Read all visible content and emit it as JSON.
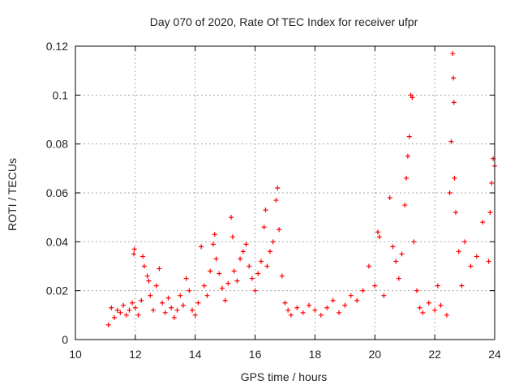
{
  "chart_data": {
    "type": "scatter",
    "title": "Day 070 of 2020, Rate Of TEC Index for receiver ufpr",
    "xlabel": "GPS time / hours",
    "ylabel": "ROTI / TECUs",
    "xlim": [
      10,
      24
    ],
    "ylim": [
      0,
      0.12
    ],
    "x_ticks": [
      "10",
      "12",
      "14",
      "16",
      "18",
      "20",
      "22",
      "24"
    ],
    "y_ticks": [
      "0",
      "0.02",
      "0.04",
      "0.06",
      "0.08",
      "0.1",
      "0.12"
    ],
    "grid": true,
    "marker": "+",
    "color": "#ff0000",
    "series": [
      {
        "name": "ROTI",
        "points": [
          [
            11.1,
            0.006
          ],
          [
            11.2,
            0.013
          ],
          [
            11.3,
            0.009
          ],
          [
            11.4,
            0.012
          ],
          [
            11.5,
            0.011
          ],
          [
            11.6,
            0.014
          ],
          [
            11.7,
            0.01
          ],
          [
            11.8,
            0.012
          ],
          [
            11.9,
            0.015
          ],
          [
            11.95,
            0.035
          ],
          [
            11.97,
            0.037
          ],
          [
            12.0,
            0.013
          ],
          [
            12.1,
            0.01
          ],
          [
            12.2,
            0.016
          ],
          [
            12.25,
            0.034
          ],
          [
            12.3,
            0.03
          ],
          [
            12.4,
            0.026
          ],
          [
            12.45,
            0.024
          ],
          [
            12.5,
            0.018
          ],
          [
            12.6,
            0.012
          ],
          [
            12.7,
            0.022
          ],
          [
            12.8,
            0.029
          ],
          [
            12.9,
            0.015
          ],
          [
            13.0,
            0.011
          ],
          [
            13.1,
            0.017
          ],
          [
            13.2,
            0.013
          ],
          [
            13.3,
            0.009
          ],
          [
            13.4,
            0.012
          ],
          [
            13.5,
            0.018
          ],
          [
            13.6,
            0.014
          ],
          [
            13.7,
            0.025
          ],
          [
            13.8,
            0.02
          ],
          [
            13.9,
            0.012
          ],
          [
            14.0,
            0.01
          ],
          [
            14.1,
            0.015
          ],
          [
            14.2,
            0.038
          ],
          [
            14.3,
            0.022
          ],
          [
            14.4,
            0.018
          ],
          [
            14.5,
            0.028
          ],
          [
            14.6,
            0.039
          ],
          [
            14.65,
            0.043
          ],
          [
            14.7,
            0.033
          ],
          [
            14.8,
            0.027
          ],
          [
            14.9,
            0.021
          ],
          [
            15.0,
            0.016
          ],
          [
            15.1,
            0.023
          ],
          [
            15.2,
            0.05
          ],
          [
            15.25,
            0.042
          ],
          [
            15.3,
            0.028
          ],
          [
            15.4,
            0.024
          ],
          [
            15.5,
            0.033
          ],
          [
            15.6,
            0.036
          ],
          [
            15.7,
            0.039
          ],
          [
            15.8,
            0.03
          ],
          [
            15.9,
            0.025
          ],
          [
            16.0,
            0.02
          ],
          [
            16.1,
            0.027
          ],
          [
            16.2,
            0.032
          ],
          [
            16.3,
            0.046
          ],
          [
            16.35,
            0.053
          ],
          [
            16.4,
            0.03
          ],
          [
            16.5,
            0.036
          ],
          [
            16.6,
            0.04
          ],
          [
            16.7,
            0.057
          ],
          [
            16.75,
            0.062
          ],
          [
            16.8,
            0.045
          ],
          [
            16.9,
            0.026
          ],
          [
            17.0,
            0.015
          ],
          [
            17.1,
            0.012
          ],
          [
            17.2,
            0.01
          ],
          [
            17.4,
            0.013
          ],
          [
            17.6,
            0.011
          ],
          [
            17.8,
            0.014
          ],
          [
            18.0,
            0.012
          ],
          [
            18.2,
            0.01
          ],
          [
            18.4,
            0.013
          ],
          [
            18.6,
            0.016
          ],
          [
            18.8,
            0.011
          ],
          [
            19.0,
            0.014
          ],
          [
            19.2,
            0.018
          ],
          [
            19.4,
            0.016
          ],
          [
            19.6,
            0.02
          ],
          [
            19.8,
            0.03
          ],
          [
            20.0,
            0.022
          ],
          [
            20.1,
            0.044
          ],
          [
            20.15,
            0.042
          ],
          [
            20.3,
            0.018
          ],
          [
            20.5,
            0.058
          ],
          [
            20.6,
            0.038
          ],
          [
            20.7,
            0.032
          ],
          [
            20.8,
            0.025
          ],
          [
            20.9,
            0.035
          ],
          [
            21.0,
            0.055
          ],
          [
            21.05,
            0.066
          ],
          [
            21.1,
            0.075
          ],
          [
            21.15,
            0.083
          ],
          [
            21.2,
            0.1
          ],
          [
            21.25,
            0.099
          ],
          [
            21.3,
            0.04
          ],
          [
            21.4,
            0.02
          ],
          [
            21.5,
            0.013
          ],
          [
            21.6,
            0.011
          ],
          [
            21.8,
            0.015
          ],
          [
            22.0,
            0.012
          ],
          [
            22.1,
            0.022
          ],
          [
            22.2,
            0.014
          ],
          [
            22.4,
            0.01
          ],
          [
            22.5,
            0.06
          ],
          [
            22.55,
            0.081
          ],
          [
            22.6,
            0.117
          ],
          [
            22.62,
            0.107
          ],
          [
            22.64,
            0.097
          ],
          [
            22.66,
            0.066
          ],
          [
            22.7,
            0.052
          ],
          [
            22.8,
            0.036
          ],
          [
            22.9,
            0.022
          ],
          [
            23.0,
            0.04
          ],
          [
            23.2,
            0.03
          ],
          [
            23.4,
            0.034
          ],
          [
            23.6,
            0.048
          ],
          [
            23.8,
            0.032
          ],
          [
            23.85,
            0.052
          ],
          [
            23.9,
            0.064
          ],
          [
            23.95,
            0.074
          ],
          [
            24.0,
            0.071
          ]
        ]
      }
    ]
  }
}
